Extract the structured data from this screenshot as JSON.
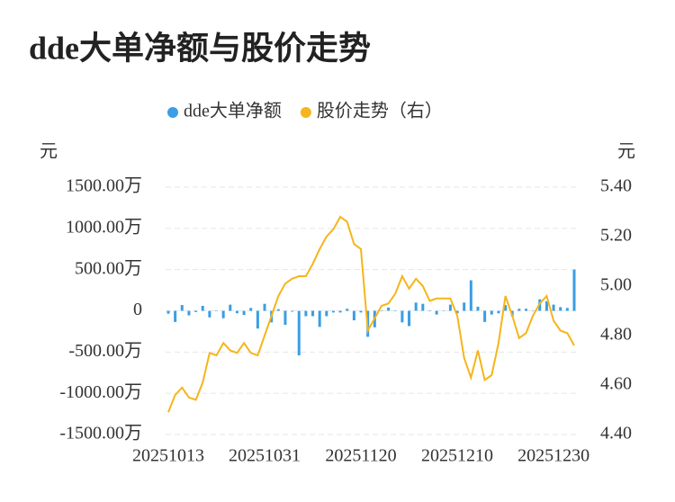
{
  "chart_data": {
    "type": "bar_line",
    "title": "dde大单净额与股价走势",
    "y_unit": "元",
    "y2_unit": "元",
    "categories": [
      "20251013",
      null,
      null,
      null,
      null,
      null,
      null,
      null,
      null,
      null,
      null,
      null,
      null,
      null,
      "20251031",
      null,
      null,
      null,
      null,
      null,
      null,
      null,
      null,
      null,
      null,
      null,
      null,
      null,
      "20251120",
      null,
      null,
      null,
      null,
      null,
      null,
      null,
      null,
      null,
      null,
      null,
      null,
      null,
      "20251210",
      null,
      null,
      null,
      null,
      null,
      null,
      null,
      null,
      null,
      null,
      null,
      null,
      null,
      "20251230",
      null,
      null,
      null
    ],
    "series": [
      {
        "name": "dde大单净额",
        "color": "#3a9ee4",
        "type": "bar",
        "axis": "y",
        "values": [
          -35,
          -135,
          70,
          -55,
          -15,
          60,
          -80,
          5,
          -90,
          75,
          -30,
          -50,
          35,
          -215,
          85,
          -140,
          20,
          -170,
          -10,
          -540,
          -65,
          -65,
          -195,
          -65,
          -20,
          -20,
          25,
          -115,
          -20,
          -315,
          -200,
          5,
          40,
          -5,
          -140,
          -185,
          100,
          85,
          -5,
          -45,
          5,
          75,
          -30,
          100,
          370,
          50,
          -135,
          -45,
          -30,
          70,
          -65,
          25,
          25,
          0,
          140,
          115,
          75,
          45,
          35,
          500
        ]
      },
      {
        "name": "股价走势（右）",
        "color": "#f5b51b",
        "type": "line",
        "axis": "y2",
        "values": [
          4.49,
          4.56,
          4.59,
          4.55,
          4.54,
          4.61,
          4.73,
          4.72,
          4.77,
          4.74,
          4.73,
          4.77,
          4.73,
          4.72,
          4.8,
          4.88,
          4.96,
          5.01,
          5.03,
          5.04,
          5.04,
          5.09,
          5.15,
          5.2,
          5.23,
          5.28,
          5.26,
          5.17,
          5.15,
          4.82,
          4.87,
          4.92,
          4.93,
          4.97,
          5.04,
          4.99,
          5.03,
          5.0,
          4.94,
          4.95,
          4.95,
          4.95,
          4.88,
          4.71,
          4.63,
          4.74,
          4.62,
          4.64,
          4.77,
          4.96,
          4.88,
          4.79,
          4.81,
          4.88,
          4.93,
          4.96,
          4.86,
          4.82,
          4.81,
          4.76
        ]
      }
    ],
    "ylim": [
      -1500,
      1500
    ],
    "yticks": [
      {
        "value": -1500,
        "label": "-1500.00万"
      },
      {
        "value": -1000,
        "label": "-1000.00万"
      },
      {
        "value": -500,
        "label": "-500.00万"
      },
      0,
      {
        "value": 500,
        "label": "500.00万"
      },
      {
        "value": 1000,
        "label": "1000.00万"
      },
      {
        "value": 1500,
        "label": "1500.00万"
      }
    ],
    "y2lim": [
      4.4,
      5.4
    ],
    "y2ticks": [
      {
        "value": 4.4,
        "label": "4.40"
      },
      {
        "value": 4.6,
        "label": "4.60"
      },
      {
        "value": 4.8,
        "label": "4.80"
      },
      {
        "value": 5.0,
        "label": "5.00"
      },
      {
        "value": 5.2,
        "label": "5.20"
      },
      {
        "value": 5.4,
        "label": "5.40"
      }
    ],
    "grid": true,
    "legend": "top"
  }
}
